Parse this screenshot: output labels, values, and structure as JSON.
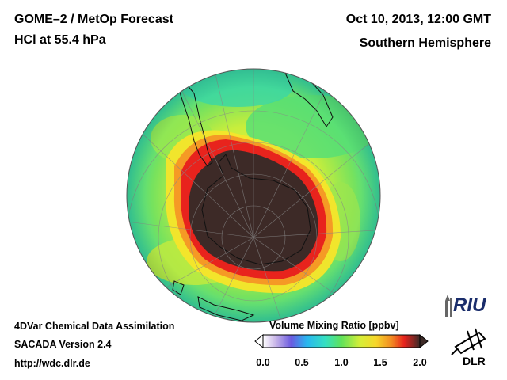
{
  "header": {
    "title_line1": "GOME–2 / MetOp Forecast",
    "title_line2": "HCl at 55.4 hPa",
    "date": "Oct 10, 2013, 12:00 GMT",
    "region": "Southern Hemisphere"
  },
  "footer": {
    "line1": "4DVar Chemical Data Assimilation",
    "line2": "SACADA Version 2.4",
    "line3": "http://wdc.dlr.de"
  },
  "colorbar": {
    "title": "Volume Mixing Ratio [ppbv]",
    "ticks": [
      "0.0",
      "0.5",
      "1.0",
      "1.5",
      "2.0"
    ],
    "min": 0.0,
    "max": 2.0
  },
  "logos": {
    "riu": "RIU",
    "dlr": "DLR"
  },
  "colors": {
    "hole": "#3d2a27",
    "ring": "#e8231d",
    "high": "#f6e52a",
    "mid": "#7ee35a",
    "low": "#3fd9a8"
  }
}
